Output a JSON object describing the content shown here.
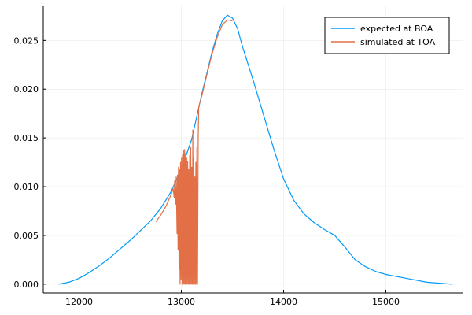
{
  "chart_data": {
    "type": "line",
    "xlim": [
      11650,
      15750
    ],
    "ylim": [
      -0.0009,
      0.0285
    ],
    "x_ticks": [
      12000,
      13000,
      14000,
      15000
    ],
    "x_tick_labels": [
      "12000",
      "13000",
      "14000",
      "15000"
    ],
    "y_ticks": [
      0.0,
      0.005,
      0.01,
      0.015,
      0.02,
      0.025
    ],
    "y_tick_labels": [
      "0.000",
      "0.005",
      "0.010",
      "0.015",
      "0.020",
      "0.025"
    ],
    "grid": true,
    "legend": {
      "placement": "top-right"
    },
    "series": [
      {
        "name": "expected at BOA",
        "color": "#009AFA",
        "points": [
          [
            11800,
            0.0
          ],
          [
            11900,
            0.0002
          ],
          [
            12000,
            0.0006
          ],
          [
            12100,
            0.0012
          ],
          [
            12200,
            0.0019
          ],
          [
            12300,
            0.0027
          ],
          [
            12400,
            0.0036
          ],
          [
            12500,
            0.0045
          ],
          [
            12600,
            0.0055
          ],
          [
            12700,
            0.0065
          ],
          [
            12800,
            0.0078
          ],
          [
            12900,
            0.0095
          ],
          [
            13000,
            0.0118
          ],
          [
            13100,
            0.0148
          ],
          [
            13200,
            0.0195
          ],
          [
            13300,
            0.0238
          ],
          [
            13350,
            0.0256
          ],
          [
            13400,
            0.027
          ],
          [
            13450,
            0.0276
          ],
          [
            13500,
            0.0273
          ],
          [
            13550,
            0.0262
          ],
          [
            13600,
            0.0243
          ],
          [
            13700,
            0.021
          ],
          [
            13800,
            0.0175
          ],
          [
            13900,
            0.014
          ],
          [
            14000,
            0.0108
          ],
          [
            14100,
            0.0086
          ],
          [
            14200,
            0.0072
          ],
          [
            14300,
            0.0063
          ],
          [
            14400,
            0.0056
          ],
          [
            14500,
            0.005
          ],
          [
            14600,
            0.0038
          ],
          [
            14700,
            0.0025
          ],
          [
            14800,
            0.0018
          ],
          [
            14900,
            0.0013
          ],
          [
            15000,
            0.001
          ],
          [
            15200,
            0.0006
          ],
          [
            15400,
            0.0002
          ],
          [
            15650,
            0.0
          ]
        ]
      },
      {
        "name": "simulated at TOA",
        "color": "#E26F46",
        "points": [
          [
            12750,
            0.0064
          ],
          [
            12800,
            0.0071
          ],
          [
            12850,
            0.008
          ],
          [
            12900,
            0.0092
          ],
          [
            12920,
            0.0098
          ],
          [
            12930,
            0.0089
          ],
          [
            12935,
            0.0106
          ],
          [
            12945,
            0.0082
          ],
          [
            12950,
            0.011
          ],
          [
            12958,
            0.0052
          ],
          [
            12962,
            0.0112
          ],
          [
            12968,
            0.0035
          ],
          [
            12972,
            0.012
          ],
          [
            12978,
            0.0015
          ],
          [
            12982,
            0.0118
          ],
          [
            12988,
            0.0
          ],
          [
            12992,
            0.0125
          ],
          [
            12998,
            0.0005
          ],
          [
            13002,
            0.013
          ],
          [
            13008,
            0.0
          ],
          [
            13012,
            0.0133
          ],
          [
            13018,
            0.0
          ],
          [
            13022,
            0.0137
          ],
          [
            13028,
            0.0
          ],
          [
            13032,
            0.0138
          ],
          [
            13038,
            0.0
          ],
          [
            13042,
            0.0134
          ],
          [
            13048,
            0.0
          ],
          [
            13052,
            0.013
          ],
          [
            13058,
            0.0
          ],
          [
            13062,
            0.0126
          ],
          [
            13068,
            0.0
          ],
          [
            13072,
            0.0118
          ],
          [
            13078,
            0.0
          ],
          [
            13082,
            0.0132
          ],
          [
            13088,
            0.0
          ],
          [
            13092,
            0.014
          ],
          [
            13098,
            0.0
          ],
          [
            13102,
            0.012
          ],
          [
            13108,
            0.0
          ],
          [
            13112,
            0.0158
          ],
          [
            13118,
            0.0
          ],
          [
            13122,
            0.013
          ],
          [
            13128,
            0.0
          ],
          [
            13132,
            0.011
          ],
          [
            13138,
            0.0
          ],
          [
            13142,
            0.0125
          ],
          [
            13148,
            0.0
          ],
          [
            13152,
            0.014
          ],
          [
            13158,
            0.0
          ],
          [
            13165,
            0.015
          ],
          [
            13170,
            0.0182
          ],
          [
            13200,
            0.0193
          ],
          [
            13250,
            0.0215
          ],
          [
            13300,
            0.0236
          ],
          [
            13350,
            0.0253
          ],
          [
            13400,
            0.0266
          ],
          [
            13450,
            0.0271
          ],
          [
            13500,
            0.027
          ]
        ]
      }
    ]
  }
}
